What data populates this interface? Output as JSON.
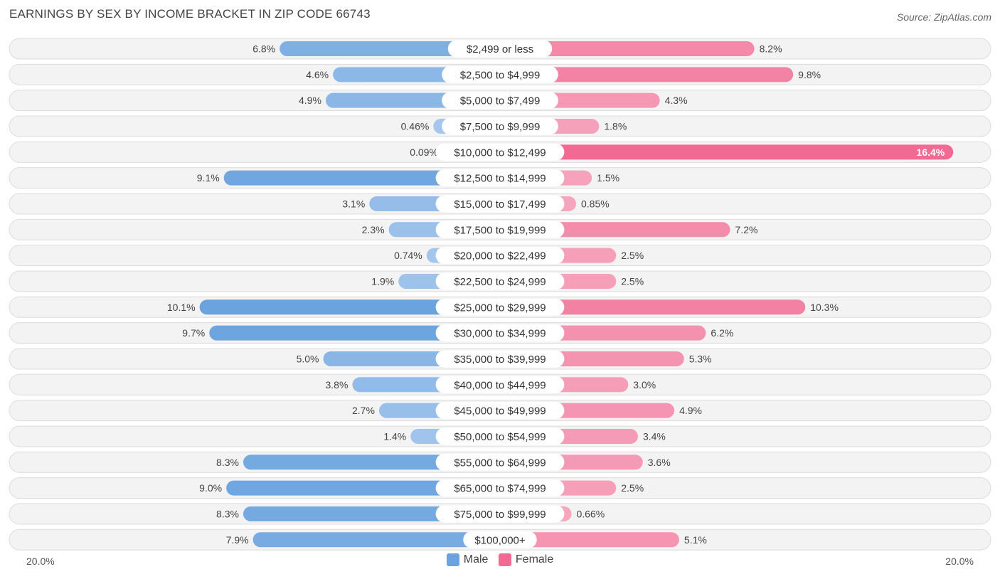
{
  "colors": {
    "male": "#6aa3de",
    "male_light": "#a9c9ee",
    "female": "#f06a93",
    "female_light": "#f7a8c0"
  },
  "chart_data": {
    "type": "bar",
    "orientation": "horizontal-diverging",
    "title": "EARNINGS BY SEX BY INCOME BRACKET IN ZIP CODE 66743",
    "source": "Source: ZipAtlas.com",
    "axis_left_label": "20.0%",
    "axis_right_label": "20.0%",
    "axis_max": 20.0,
    "legend_position": "bottom-center",
    "categories": [
      "$2,499 or less",
      "$2,500 to $4,999",
      "$5,000 to $7,499",
      "$7,500 to $9,999",
      "$10,000 to $12,499",
      "$12,500 to $14,999",
      "$15,000 to $17,499",
      "$17,500 to $19,999",
      "$20,000 to $22,499",
      "$22,500 to $24,999",
      "$25,000 to $29,999",
      "$30,000 to $34,999",
      "$35,000 to $39,999",
      "$40,000 to $44,999",
      "$45,000 to $49,999",
      "$50,000 to $54,999",
      "$55,000 to $64,999",
      "$65,000 to $74,999",
      "$75,000 to $99,999",
      "$100,000+"
    ],
    "series": [
      {
        "name": "Male",
        "values": [
          6.8,
          4.6,
          4.9,
          0.46,
          0.09,
          9.1,
          3.1,
          2.3,
          0.74,
          1.9,
          10.1,
          9.7,
          5.0,
          3.8,
          2.7,
          1.4,
          8.3,
          9.0,
          8.3,
          7.9
        ],
        "labels": [
          "6.8%",
          "4.6%",
          "4.9%",
          "0.46%",
          "0.09%",
          "9.1%",
          "3.1%",
          "2.3%",
          "0.74%",
          "1.9%",
          "10.1%",
          "9.7%",
          "5.0%",
          "3.8%",
          "2.7%",
          "1.4%",
          "8.3%",
          "9.0%",
          "8.3%",
          "7.9%"
        ]
      },
      {
        "name": "Female",
        "values": [
          8.2,
          9.8,
          4.3,
          1.8,
          16.4,
          1.5,
          0.85,
          7.2,
          2.5,
          2.5,
          10.3,
          6.2,
          5.3,
          3.0,
          4.9,
          3.4,
          3.6,
          2.5,
          0.66,
          5.1
        ],
        "labels": [
          "8.2%",
          "9.8%",
          "4.3%",
          "1.8%",
          "16.4%",
          "1.5%",
          "0.85%",
          "7.2%",
          "2.5%",
          "2.5%",
          "10.3%",
          "6.2%",
          "5.3%",
          "3.0%",
          "4.9%",
          "3.4%",
          "3.6%",
          "2.5%",
          "0.66%",
          "5.1%"
        ]
      }
    ]
  },
  "legend": {
    "male_label": "Male",
    "female_label": "Female"
  }
}
